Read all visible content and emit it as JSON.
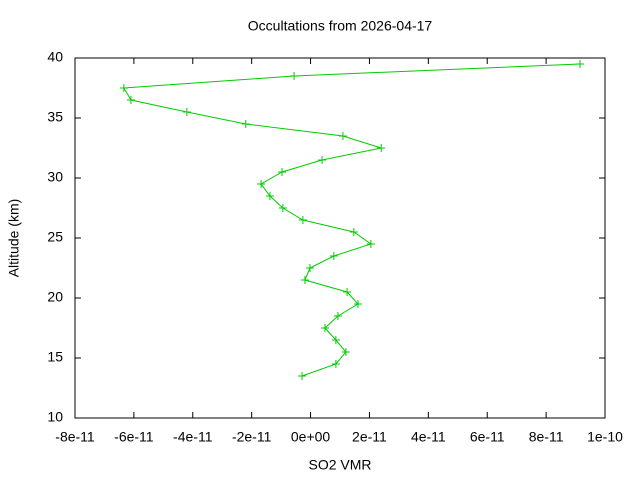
{
  "chart_data": {
    "type": "line",
    "title": "Occultations from 2026-04-17",
    "x_label": "SO2 VMR",
    "y_label": "Altitude (km)",
    "series": [
      {
        "color": "#00cc00",
        "x": [
          9.15e-11,
          -5.6e-12,
          -6.34e-11,
          -6.1e-11,
          -4.2e-11,
          -2.2e-11,
          1.1e-11,
          2.4e-11,
          3.9e-12,
          -9.7e-12,
          -1.68e-11,
          -1.38e-11,
          -9.4e-12,
          -2.6e-12,
          1.47e-11,
          2.05e-11,
          7.9e-12,
          -2e-13,
          -1.9e-12,
          1.24e-11,
          1.61e-11,
          9.3e-12,
          4.9e-12,
          8.6e-12,
          1.2e-11,
          8.6e-12,
          -2.9e-12
        ],
        "values": [
          39.5,
          38.5,
          37.5,
          36.5,
          35.5,
          34.5,
          33.5,
          32.5,
          31.5,
          30.5,
          29.5,
          28.5,
          27.5,
          26.5,
          25.5,
          24.5,
          23.5,
          22.5,
          21.5,
          20.5,
          19.5,
          18.5,
          17.5,
          16.5,
          15.5,
          14.5,
          13.5
        ]
      }
    ],
    "xlim": [
      -8e-11,
      1e-10
    ],
    "xticks": [
      -8e-11,
      -6e-11,
      -4e-11,
      -2e-11,
      {
        "value": 0,
        "label": "0e+00"
      },
      2e-11,
      4e-11,
      6e-11,
      8e-11,
      1e-10
    ],
    "ylim": [
      10,
      40
    ],
    "yticks": [
      10,
      15,
      20,
      25,
      30,
      35,
      40
    ],
    "grid": false
  }
}
